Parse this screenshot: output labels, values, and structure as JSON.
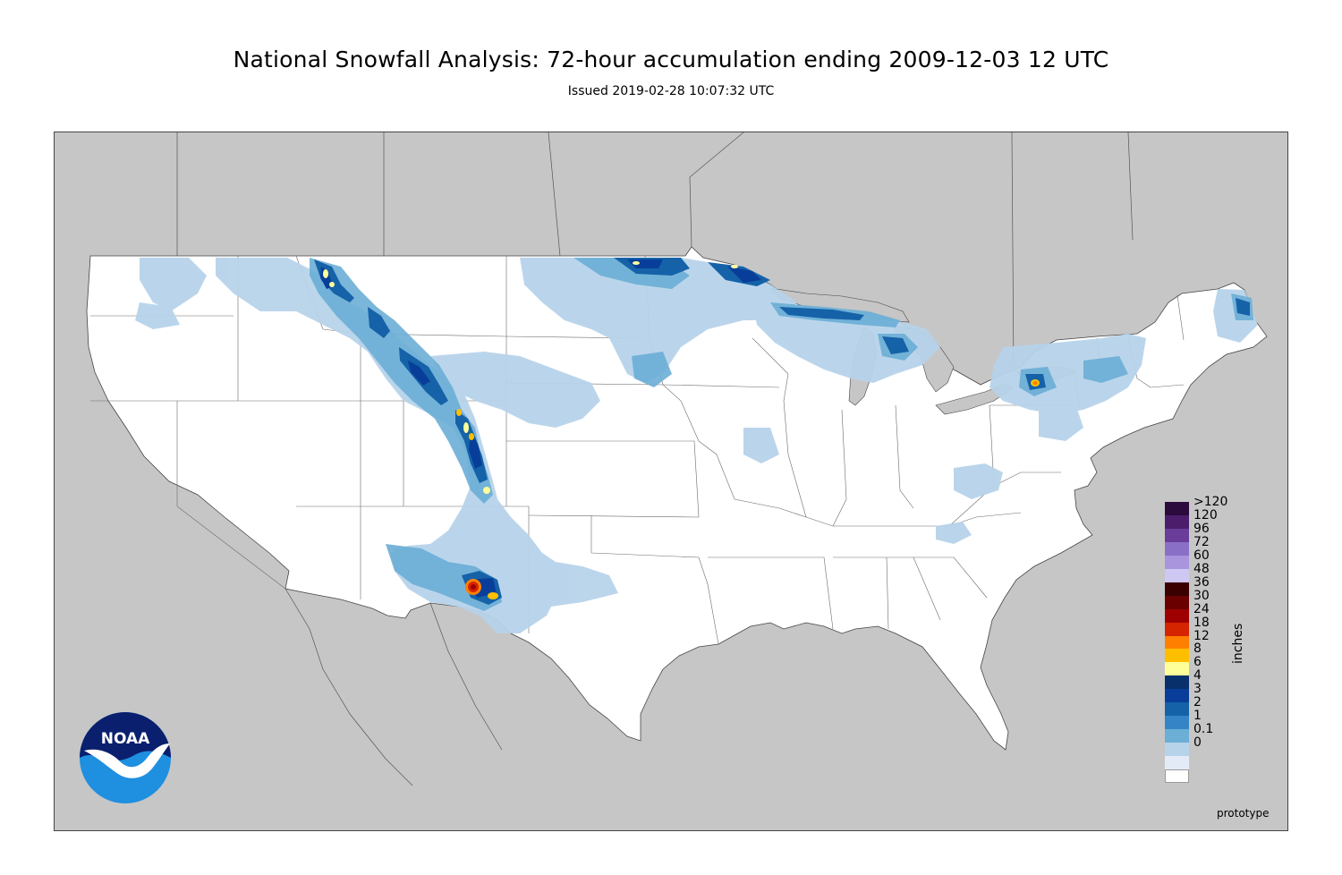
{
  "header": {
    "title": "National Snowfall Analysis: 72-hour accumulation ending 2009-12-03 12 UTC",
    "subtitle": "Issued 2019-02-28 10:07:32 UTC"
  },
  "map": {
    "land_color": "#ffffff",
    "outside_color": "#c6c6c6",
    "water_color": "#c6c6c6",
    "boundary_color": "#555555"
  },
  "legend": {
    "unit_label": "inches",
    "bins": [
      {
        "label": ">120",
        "color": "#2b0a3d"
      },
      {
        "label": "120",
        "color": "#4c1d6b"
      },
      {
        "label": "96",
        "color": "#6a3d9a"
      },
      {
        "label": "72",
        "color": "#8a6fc6"
      },
      {
        "label": "60",
        "color": "#a895dd"
      },
      {
        "label": "48",
        "color": "#cfc8f2"
      },
      {
        "label": "36",
        "color": "#3a0000"
      },
      {
        "label": "30",
        "color": "#6b0000"
      },
      {
        "label": "24",
        "color": "#9e0000"
      },
      {
        "label": "18",
        "color": "#d42400"
      },
      {
        "label": "12",
        "color": "#ff7f00"
      },
      {
        "label": "8",
        "color": "#ffbf00"
      },
      {
        "label": "6",
        "color": "#ffff99"
      },
      {
        "label": "4",
        "color": "#08306b"
      },
      {
        "label": "3",
        "color": "#083e9a"
      },
      {
        "label": "2",
        "color": "#1562a8"
      },
      {
        "label": "1",
        "color": "#3585c6"
      },
      {
        "label": "0.1",
        "color": "#6baed6"
      },
      {
        "label": "0",
        "color": "#b7d3ea"
      },
      {
        "label": "",
        "color": "#e3ecf6"
      },
      {
        "label": "",
        "color": "#ffffff"
      }
    ]
  },
  "logo": {
    "text": "NOAA",
    "dark_color": "#0a1f6e",
    "light_color": "#1f8fe0",
    "icon": "noaa-logo-icon"
  },
  "footer": {
    "label": "prototype"
  }
}
